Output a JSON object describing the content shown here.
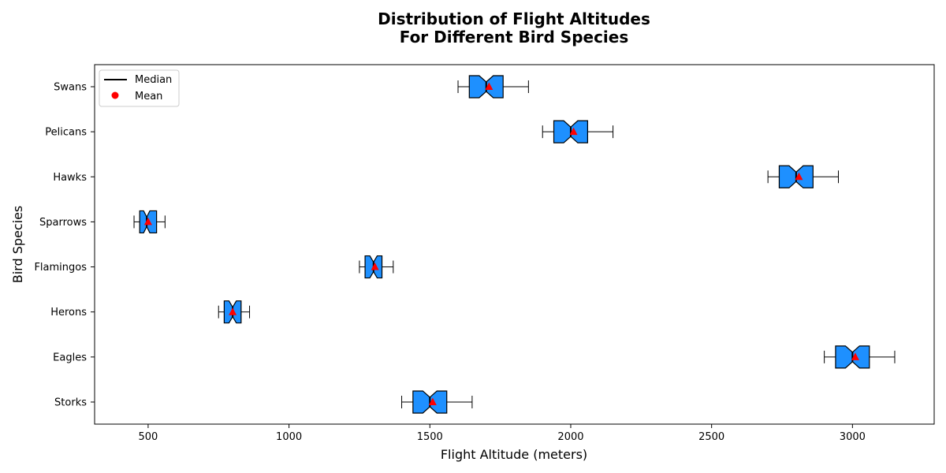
{
  "chart_data": {
    "type": "boxplot",
    "orientation": "horizontal",
    "title_lines": [
      "Distribution of Flight Altitudes",
      "For Different Bird Species"
    ],
    "xlabel": "Flight Altitude (meters)",
    "ylabel": "Bird Species",
    "xlim": [
      310,
      3290
    ],
    "xticks": [
      500,
      1000,
      1500,
      2000,
      2500,
      3000
    ],
    "notched": true,
    "box_color": "#1e90ff",
    "mean_color": "#ff0000",
    "grid": false,
    "legend": {
      "placement": "top-left",
      "entries": [
        {
          "label": "Median",
          "marker": "line"
        },
        {
          "label": "Mean",
          "marker": "dot"
        }
      ]
    },
    "categories": [
      "Storks",
      "Eagles",
      "Herons",
      "Flamingos",
      "Sparrows",
      "Hawks",
      "Pelicans",
      "Swans"
    ],
    "series": [
      {
        "category": "Storks",
        "whisker_low": 1400,
        "q1": 1440,
        "median": 1500,
        "q3": 1560,
        "whisker_high": 1650,
        "mean": 1510,
        "notch_low": 1475,
        "notch_high": 1525
      },
      {
        "category": "Eagles",
        "whisker_low": 2900,
        "q1": 2940,
        "median": 3000,
        "q3": 3060,
        "whisker_high": 3150,
        "mean": 3010,
        "notch_low": 2975,
        "notch_high": 3025
      },
      {
        "category": "Herons",
        "whisker_low": 750,
        "q1": 770,
        "median": 800,
        "q3": 830,
        "whisker_high": 860,
        "mean": 800,
        "notch_low": 787,
        "notch_high": 813
      },
      {
        "category": "Flamingos",
        "whisker_low": 1250,
        "q1": 1270,
        "median": 1300,
        "q3": 1330,
        "whisker_high": 1370,
        "mean": 1305,
        "notch_low": 1287,
        "notch_high": 1313
      },
      {
        "category": "Sparrows",
        "whisker_low": 450,
        "q1": 470,
        "median": 495,
        "q3": 530,
        "whisker_high": 560,
        "mean": 500,
        "notch_low": 484,
        "notch_high": 506
      },
      {
        "category": "Hawks",
        "whisker_low": 2700,
        "q1": 2740,
        "median": 2800,
        "q3": 2860,
        "whisker_high": 2950,
        "mean": 2810,
        "notch_low": 2775,
        "notch_high": 2825
      },
      {
        "category": "Pelicans",
        "whisker_low": 1900,
        "q1": 1940,
        "median": 2000,
        "q3": 2060,
        "whisker_high": 2150,
        "mean": 2010,
        "notch_low": 1975,
        "notch_high": 2025
      },
      {
        "category": "Swans",
        "whisker_low": 1600,
        "q1": 1640,
        "median": 1700,
        "q3": 1760,
        "whisker_high": 1850,
        "mean": 1710,
        "notch_low": 1675,
        "notch_high": 1725
      }
    ]
  }
}
